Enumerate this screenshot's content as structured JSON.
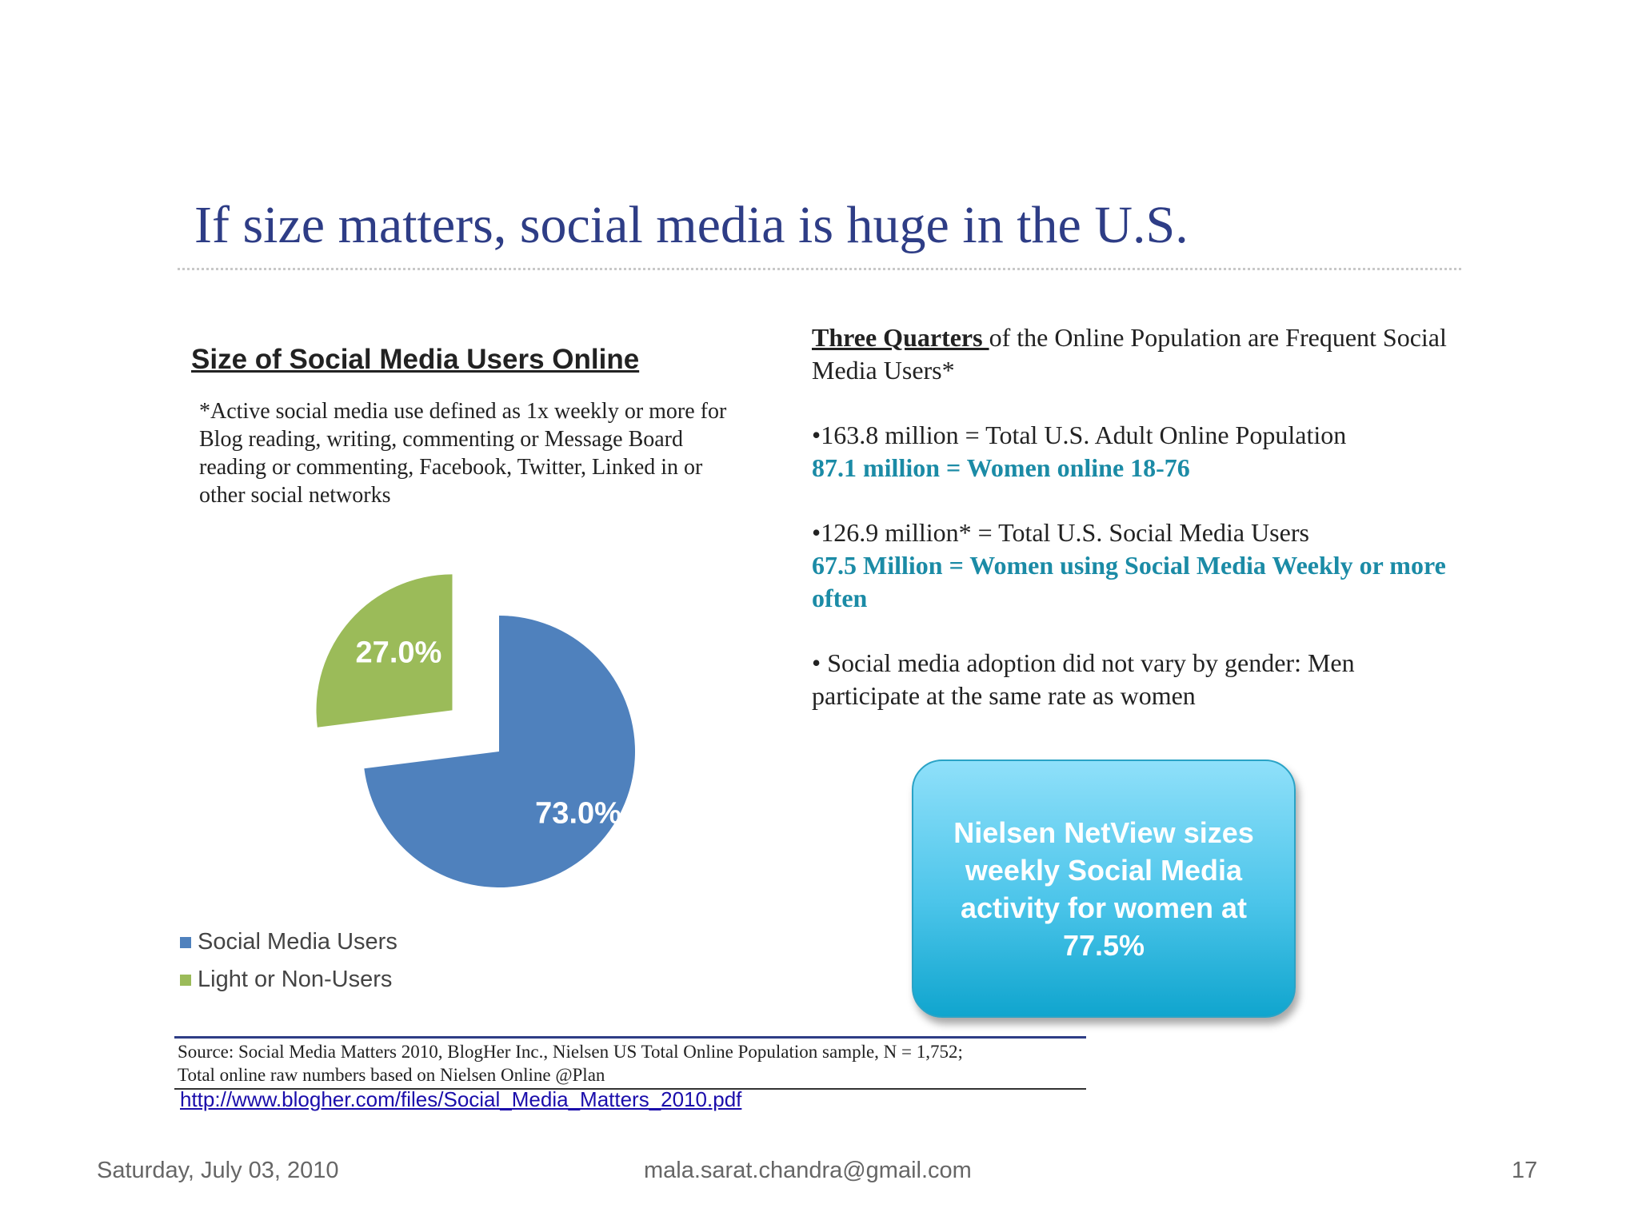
{
  "slide": {
    "title": "If size matters, social media is huge in the U.S."
  },
  "left": {
    "definition": "*Active social media use defined as 1x weekly or more for Blog reading, writing, commenting or Message Board reading or commenting, Facebook, Twitter,  Linked in or other social networks"
  },
  "chart_data": {
    "type": "pie",
    "title": "Size of Social Media Users Online",
    "categories": [
      "Social Media Users",
      "Light or Non-Users"
    ],
    "values": [
      73.0,
      27.0
    ],
    "labels": [
      "73.0%",
      "27.0%"
    ],
    "colors": [
      "#4f81bd",
      "#9bbb59"
    ],
    "exploded": [
      false,
      true
    ],
    "legend_position": "bottom-left"
  },
  "right": {
    "heading_underlined": "Three Quarters ",
    "heading_rest": "of the Online Population are Frequent Social Media Users*",
    "stat1": "•163.8 million = Total U.S. Adult Online Population",
    "stat1_highlight": "87.1 million = Women online 18-76",
    "stat2": "•126.9 million* = Total U.S. Social Media Users",
    "stat2_highlight": "67.5 Million = Women using Social Media Weekly or more often",
    "note": "• Social media adoption did not vary by gender: Men participate at the same rate as women"
  },
  "callout": {
    "text": "Nielsen NetView sizes weekly Social Media activity for women at 77.5%"
  },
  "source": {
    "line1": "Source:  Social Media Matters 2010, BlogHer Inc.,  Nielsen US Total Online Population sample, N = 1,752;",
    "line2": "Total online raw numbers based on  Nielsen Online @Plan",
    "link": "http://www.blogher.com/files/Social_Media_Matters_2010.pdf"
  },
  "footer": {
    "date": "Saturday, July 03, 2010",
    "email": "mala.sarat.chandra@gmail.com",
    "page": "17"
  }
}
